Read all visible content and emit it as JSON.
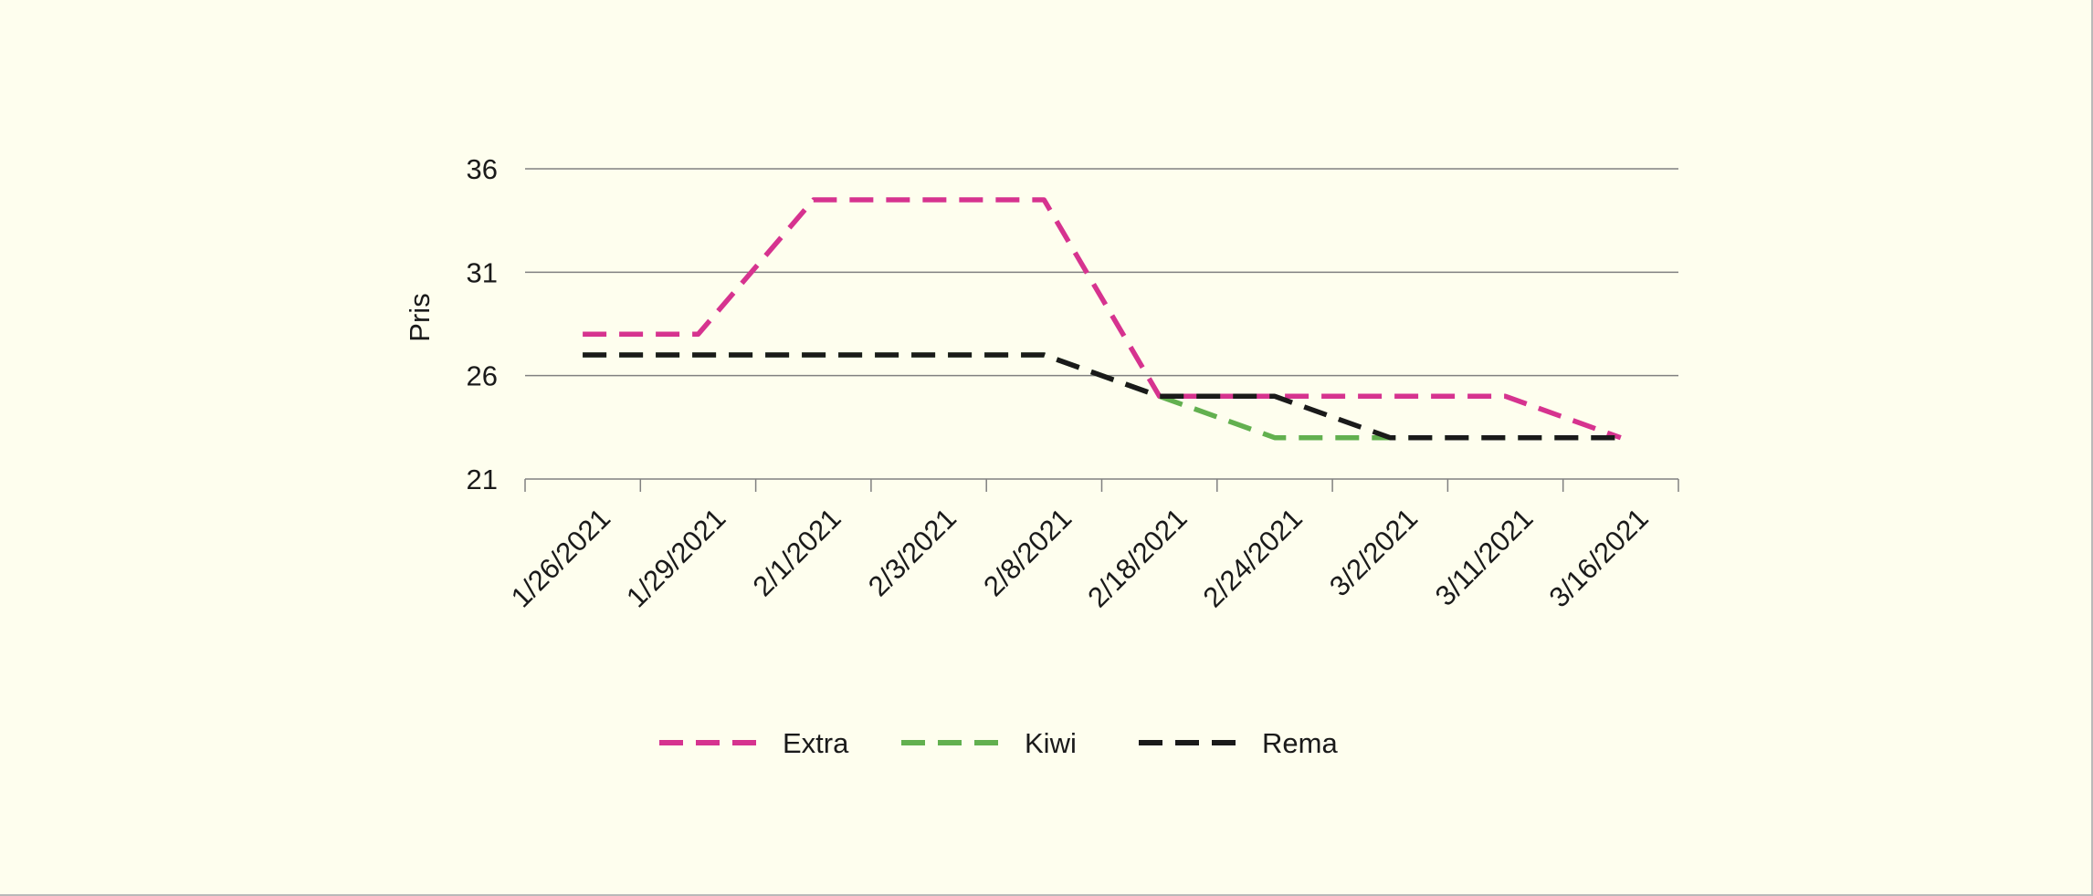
{
  "chart_data": {
    "type": "line",
    "title": "",
    "xlabel": "",
    "ylabel": "Pris",
    "categories": [
      "1/26/2021",
      "1/29/2021",
      "2/1/2021",
      "2/3/2021",
      "2/8/2021",
      "2/18/2021",
      "2/24/2021",
      "3/2/2021",
      "3/11/2021",
      "3/16/2021"
    ],
    "yticks": [
      "21",
      "26",
      "31",
      "36"
    ],
    "ylim": [
      21,
      36
    ],
    "grid": "horizontal",
    "legend_position": "bottom",
    "series": [
      {
        "name": "Extra",
        "color": "#d6338f",
        "values": [
          28,
          28,
          34.5,
          34.5,
          34.5,
          25,
          25,
          25,
          25,
          23
        ]
      },
      {
        "name": "Kiwi",
        "color": "#62b04f",
        "values": [
          27,
          27,
          27,
          27,
          27,
          25,
          23,
          23,
          23,
          23
        ]
      },
      {
        "name": "Rema",
        "color": "#1a1a1a",
        "values": [
          27,
          27,
          27,
          27,
          27,
          25,
          25,
          23,
          23,
          23
        ]
      }
    ]
  }
}
